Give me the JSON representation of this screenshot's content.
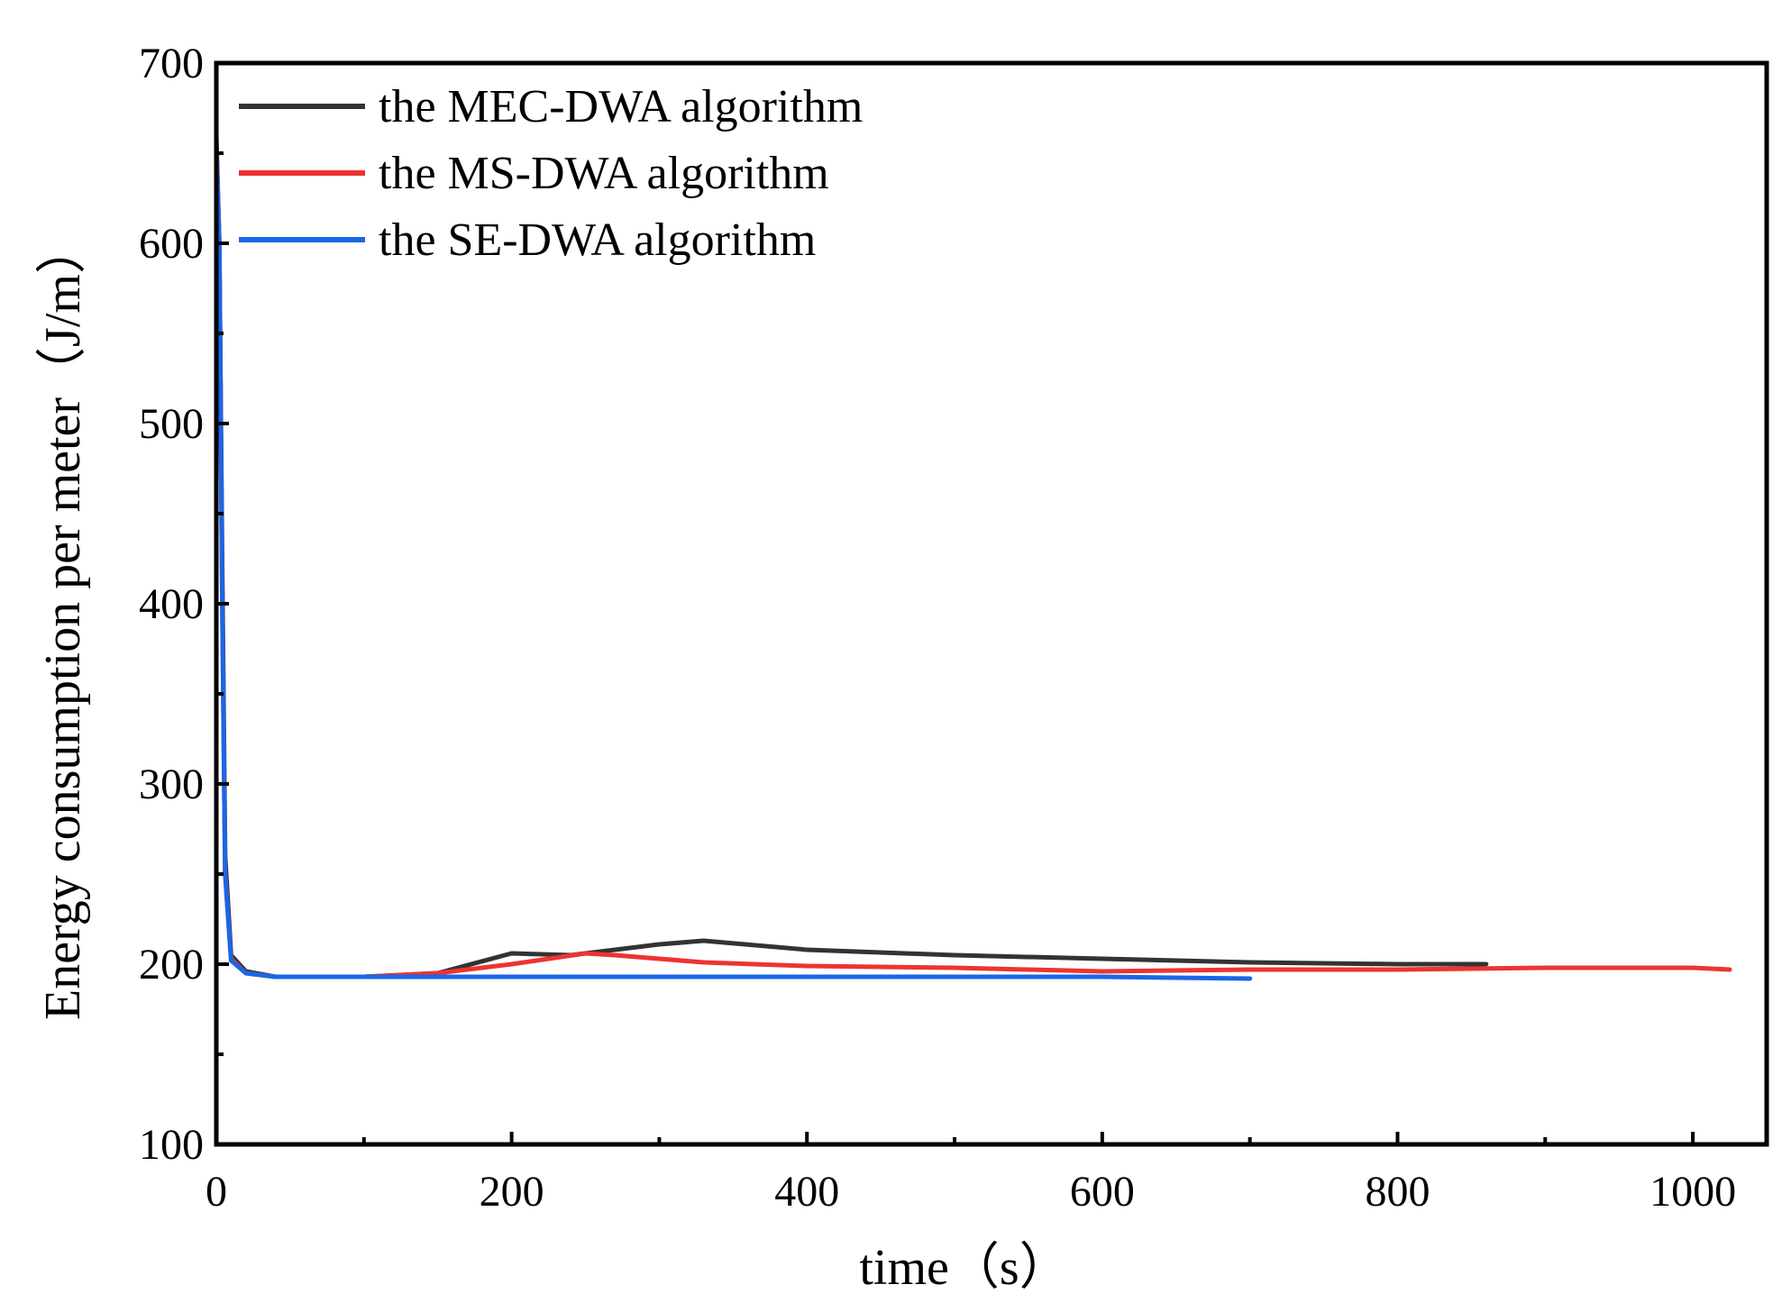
{
  "chart_data": {
    "type": "line",
    "title": "",
    "xlabel": "time（s）",
    "ylabel": "Energy consumption per meter（J/m）",
    "xlim": [
      0,
      1050
    ],
    "ylim": [
      100,
      700
    ],
    "xticks": [
      0,
      200,
      400,
      600,
      800,
      1000
    ],
    "yticks": [
      100,
      200,
      300,
      400,
      500,
      600,
      700
    ],
    "xtick_labels": [
      "0",
      "200",
      "400",
      "600",
      "800",
      "1000"
    ],
    "ytick_labels": [
      "100",
      "200",
      "300",
      "400",
      "500",
      "600",
      "700"
    ],
    "x_minor_ticks": [
      100,
      300,
      500,
      700,
      900
    ],
    "y_minor_ticks": [
      150,
      250,
      350,
      450,
      550,
      650
    ],
    "grid": false,
    "legend_position": "top-left",
    "series": [
      {
        "name": "the MEC-DWA algorithm",
        "color": "#333333",
        "points": [
          [
            0,
            660
          ],
          [
            2,
            600
          ],
          [
            4,
            420
          ],
          [
            6,
            260
          ],
          [
            10,
            205
          ],
          [
            20,
            196
          ],
          [
            40,
            193
          ],
          [
            100,
            193
          ],
          [
            150,
            195
          ],
          [
            200,
            206
          ],
          [
            240,
            205
          ],
          [
            300,
            211
          ],
          [
            330,
            213
          ],
          [
            400,
            208
          ],
          [
            500,
            205
          ],
          [
            600,
            203
          ],
          [
            700,
            201
          ],
          [
            800,
            200
          ],
          [
            860,
            200
          ]
        ]
      },
      {
        "name": "the MS-DWA algorithm",
        "color": "#ee3333",
        "points": [
          [
            0,
            655
          ],
          [
            2,
            600
          ],
          [
            4,
            400
          ],
          [
            6,
            250
          ],
          [
            10,
            203
          ],
          [
            20,
            195
          ],
          [
            40,
            193
          ],
          [
            100,
            193
          ],
          [
            150,
            195
          ],
          [
            200,
            200
          ],
          [
            250,
            206
          ],
          [
            270,
            205
          ],
          [
            330,
            201
          ],
          [
            400,
            199
          ],
          [
            500,
            198
          ],
          [
            600,
            196
          ],
          [
            700,
            197
          ],
          [
            800,
            197
          ],
          [
            900,
            198
          ],
          [
            1000,
            198
          ],
          [
            1025,
            197
          ]
        ]
      },
      {
        "name": "the SE-DWA algorithm",
        "color": "#1a66e6",
        "points": [
          [
            0,
            652
          ],
          [
            2,
            600
          ],
          [
            4,
            400
          ],
          [
            6,
            250
          ],
          [
            10,
            202
          ],
          [
            20,
            195
          ],
          [
            40,
            193
          ],
          [
            100,
            193
          ],
          [
            200,
            193
          ],
          [
            300,
            193
          ],
          [
            400,
            193
          ],
          [
            500,
            193
          ],
          [
            600,
            193
          ],
          [
            700,
            192
          ]
        ]
      }
    ]
  }
}
